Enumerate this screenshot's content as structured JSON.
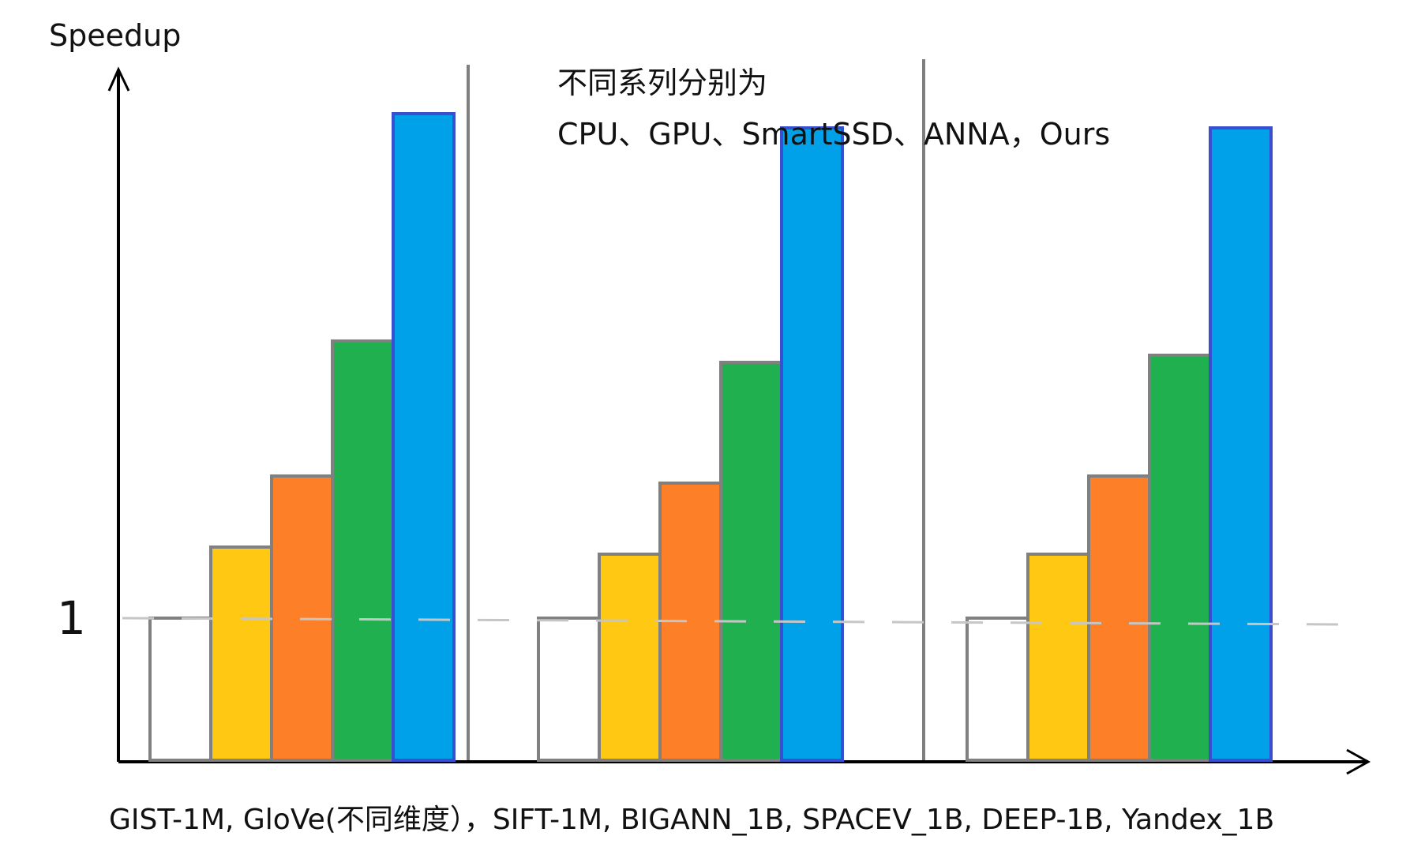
{
  "chart_data": {
    "type": "bar",
    "ylabel": "Speedup",
    "reference_line": {
      "value": 1,
      "label": "1"
    },
    "annotation": {
      "line1": "不同系列分别为",
      "line2": "CPU、GPU、SmartSSD、ANNA，Ours"
    },
    "xlabel": "GIST-1M, GloVe(不同维度），SIFT-1M, BIGANN_1B, SPACEV_1B, DEEP-1B, Yandex_1B",
    "groups": [
      "",
      "",
      ""
    ],
    "series": [
      {
        "name": "CPU",
        "values": [
          1.0,
          1.0,
          1.0
        ]
      },
      {
        "name": "GPU",
        "values": [
          1.5,
          1.45,
          1.45
        ]
      },
      {
        "name": "SmartSSD",
        "values": [
          2.0,
          1.95,
          2.0
        ]
      },
      {
        "name": "ANNA",
        "values": [
          2.95,
          2.8,
          2.85
        ]
      },
      {
        "name": "Ours",
        "values": [
          4.55,
          4.45,
          4.45
        ]
      }
    ],
    "ylim": [
      0,
      5
    ],
    "colors": {
      "CPU": "#ffffff",
      "GPU": "#fec813",
      "SmartSSD": "#fd7f28",
      "ANNA": "#21b04f",
      "Ours": "#00a1e9"
    },
    "grid": false,
    "legend": "none"
  }
}
